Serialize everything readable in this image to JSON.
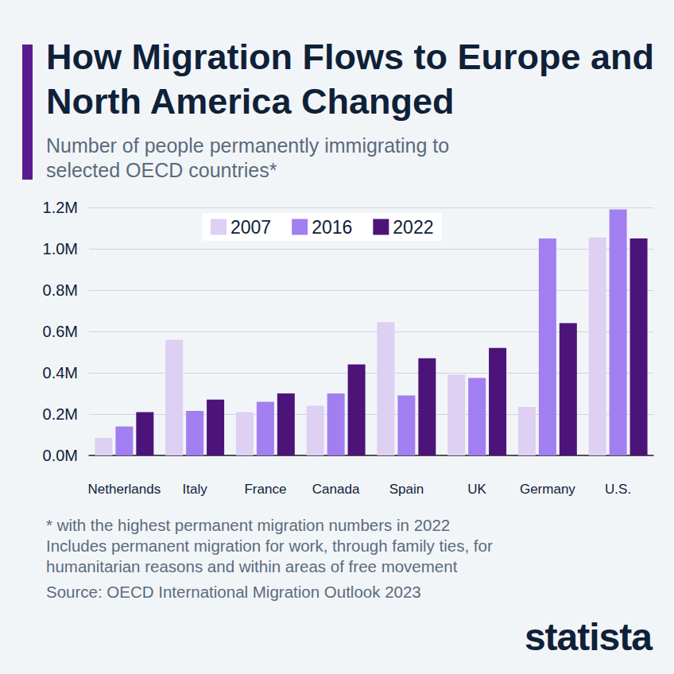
{
  "chart_data": {
    "type": "bar",
    "title": "How Migration Flows to Europe and North America Changed",
    "subtitle": "Number of people permanently immigrating to selected OECD countries*",
    "categories": [
      "Netherlands",
      "Italy",
      "France",
      "Canada",
      "Spain",
      "UK",
      "Germany",
      "U.S."
    ],
    "series": [
      {
        "name": "2007",
        "color": "#ddd0f3",
        "values": [
          85000,
          560000,
          210000,
          240000,
          645000,
          390000,
          235000,
          1055000
        ]
      },
      {
        "name": "2016",
        "color": "#a27ff0",
        "values": [
          140000,
          215000,
          260000,
          300000,
          290000,
          375000,
          1050000,
          1190000
        ]
      },
      {
        "name": "2022",
        "color": "#4c1479",
        "values": [
          210000,
          270000,
          300000,
          440000,
          470000,
          520000,
          640000,
          1050000
        ]
      }
    ],
    "ylim": [
      0,
      1200000
    ],
    "yticks": [
      {
        "value": 0,
        "label": "0.0M"
      },
      {
        "value": 200000,
        "label": "0.2M"
      },
      {
        "value": 400000,
        "label": "0.4M"
      },
      {
        "value": 600000,
        "label": "0.6M"
      },
      {
        "value": 800000,
        "label": "0.8M"
      },
      {
        "value": 1000000,
        "label": "1.0M"
      },
      {
        "value": 1200000,
        "label": "1.2M"
      }
    ],
    "grid": true,
    "legend": "top",
    "notes": [
      "* with the highest permanent migration numbers in 2022",
      "Includes permanent migration for work, through family ties, for humanitarian reasons and within areas of free movement"
    ],
    "source": "Source: OECD International Migration Outlook 2023",
    "brand": "statista"
  }
}
